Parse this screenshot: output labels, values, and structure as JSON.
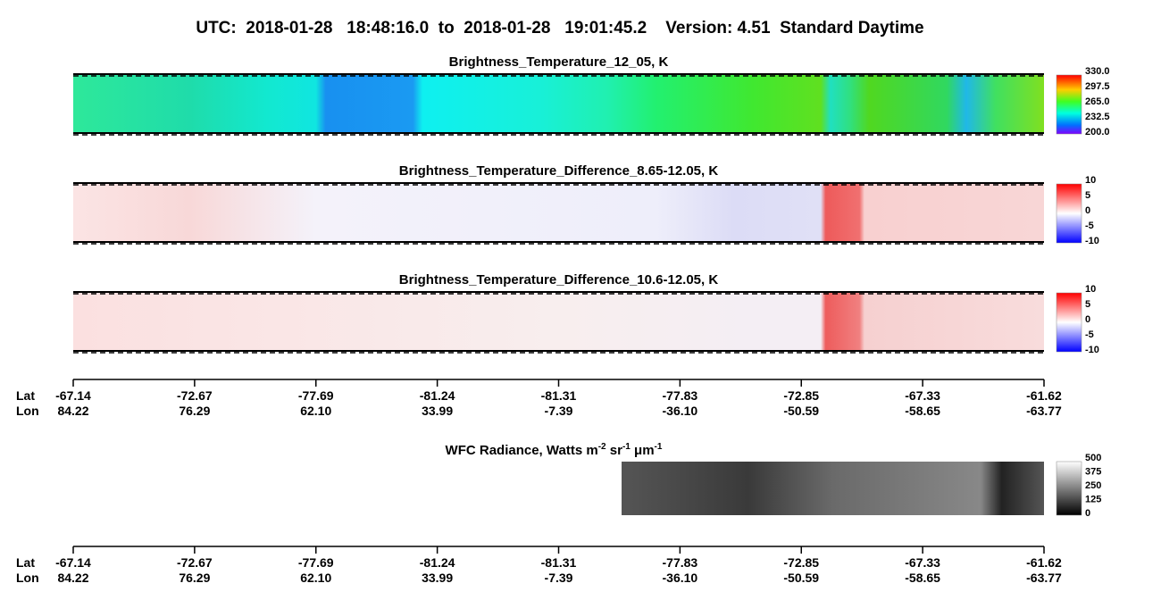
{
  "title": "UTC:  2018-01-28   18:48:16.0  to  2018-01-28   19:01:45.2    Version: 4.51  Standard Daytime",
  "panels": [
    {
      "title": "Brightness_Temperature_12_05, K",
      "colorbar_ticks": [
        "330.0",
        "297.5",
        "265.0",
        "232.5",
        "200.0"
      ]
    },
    {
      "title": "Brightness_Temperature_Difference_8.65-12.05, K",
      "colorbar_ticks": [
        "10",
        "5",
        "0",
        "-5",
        "-10"
      ]
    },
    {
      "title": "Brightness_Temperature_Difference_10.6-12.05, K",
      "colorbar_ticks": [
        "10",
        "5",
        "0",
        "-5",
        "-10"
      ]
    }
  ],
  "axes": [
    {
      "lat_label": "Lat",
      "lon_label": "Lon",
      "lat": [
        "-67.14",
        "-72.67",
        "-77.69",
        "-81.24",
        "-81.31",
        "-77.83",
        "-72.85",
        "-67.33",
        "-61.62"
      ],
      "lon": [
        "84.22",
        "76.29",
        "62.10",
        "33.99",
        "-7.39",
        "-36.10",
        "-50.59",
        "-58.65",
        "-63.77"
      ]
    },
    {
      "lat_label": "Lat",
      "lon_label": "Lon",
      "lat": [
        "-67.14",
        "-72.67",
        "-77.69",
        "-81.24",
        "-81.31",
        "-77.83",
        "-72.85",
        "-67.33",
        "-61.62"
      ],
      "lon": [
        "84.22",
        "76.29",
        "62.10",
        "33.99",
        "-7.39",
        "-36.10",
        "-50.59",
        "-58.65",
        "-63.77"
      ]
    }
  ],
  "wfc": {
    "title_parts": [
      {
        "text": "WFC Radiance, Watts m"
      },
      {
        "sup": "-2"
      },
      {
        "text": " sr"
      },
      {
        "sup": "-1"
      },
      {
        "text": " μm"
      },
      {
        "sup": "-1"
      }
    ],
    "colorbar_ticks": [
      "500",
      "375",
      "250",
      "125",
      "0"
    ]
  }
}
